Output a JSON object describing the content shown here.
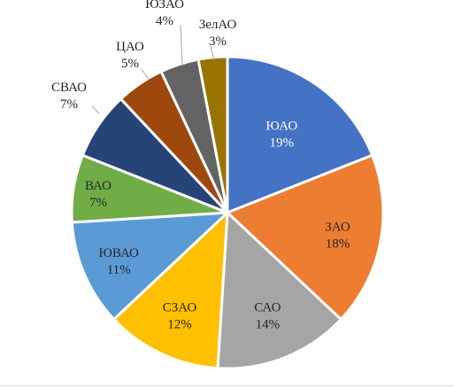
{
  "chart_data": {
    "type": "pie",
    "categories": [
      "ЮАО",
      "ЗАО",
      "САО",
      "СЗАО",
      "ЮВАО",
      "ВАО",
      "СВАО",
      "ЦАО",
      "ЮЗАО",
      "ЗелАО"
    ],
    "values": [
      19,
      18,
      14,
      12,
      11,
      7,
      7,
      5,
      4,
      3
    ],
    "data_labels": [
      "19%",
      "18%",
      "14%",
      "12%",
      "11%",
      "7%",
      "7%",
      "5%",
      "4%",
      "3%"
    ],
    "colors": [
      "#4472C4",
      "#ED7D31",
      "#A5A5A5",
      "#FFC000",
      "#5B9BD5",
      "#70AD47",
      "#264478",
      "#9E480E",
      "#636363",
      "#997300"
    ],
    "label_colors": [
      "white",
      "dark",
      "dark",
      "dark",
      "dark",
      "dark",
      "dark",
      "dark",
      "dark",
      "dark"
    ],
    "label_placement": [
      "inside",
      "inside",
      "inside",
      "inside",
      "inside",
      "inside",
      "outside",
      "outside",
      "outside",
      "outside"
    ],
    "start_angle": "12 o'clock",
    "direction": "clockwise",
    "legend": "none",
    "title": ""
  }
}
